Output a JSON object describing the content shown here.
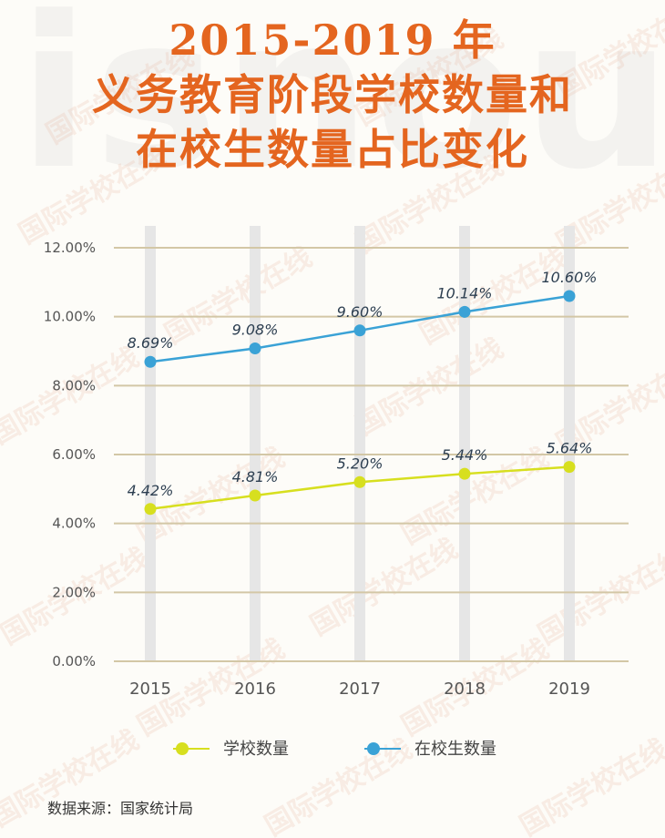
{
  "title": {
    "line1": "2015-2019 年",
    "line2": "义务教育阶段学校数量和",
    "line3": "在校生数量占比变化"
  },
  "watermark": {
    "brand": "国际学校在线",
    "big": "isnou"
  },
  "chart_data": {
    "type": "line",
    "categories": [
      "2015",
      "2016",
      "2017",
      "2018",
      "2019"
    ],
    "series": [
      {
        "name": "学校数量",
        "values": [
          4.42,
          4.81,
          5.2,
          5.44,
          5.64
        ],
        "labels": [
          "4.42%",
          "4.81%",
          "5.20%",
          "5.44%",
          "5.64%"
        ],
        "color": "#d7df1f"
      },
      {
        "name": "在校生数量",
        "values": [
          8.69,
          9.08,
          9.6,
          10.14,
          10.6
        ],
        "labels": [
          "8.69%",
          "9.08%",
          "9.60%",
          "10.14%",
          "10.60%"
        ],
        "color": "#3aa2d6"
      }
    ],
    "ylim": [
      0,
      12
    ],
    "yticks": [
      0,
      2,
      4,
      6,
      8,
      10,
      12
    ],
    "yticklabels": [
      "0.00%",
      "2.00%",
      "4.00%",
      "6.00%",
      "8.00%",
      "10.00%",
      "12.00%"
    ],
    "legend_position": "bottom",
    "grid": true,
    "colors": {
      "gridline": "#d3c7a6",
      "column_band": "#e6e6e6",
      "axis_text": "#555555",
      "label_text": "#2c3e50"
    }
  },
  "source": "数据来源：国家统计局"
}
